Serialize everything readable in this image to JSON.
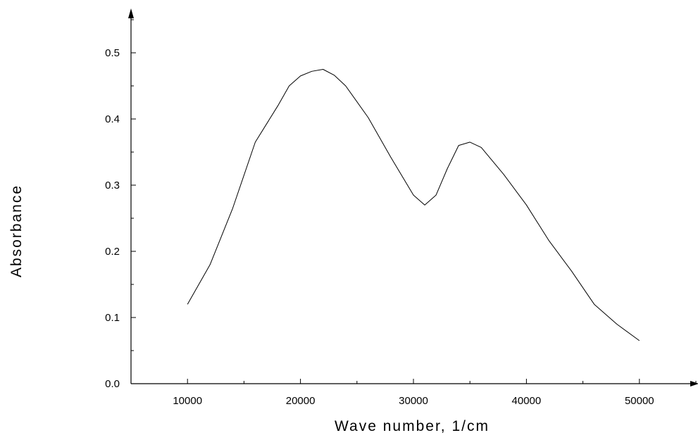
{
  "chart_data": {
    "type": "line",
    "title": "",
    "xlabel": "Wave number, 1/cm",
    "ylabel": "Absorbance",
    "xlim": [
      5000,
      55000
    ],
    "ylim": [
      0.0,
      0.55
    ],
    "x_ticks": [
      10000,
      20000,
      30000,
      40000,
      50000
    ],
    "x_tick_labels": [
      "10000",
      "20000",
      "30000",
      "40000",
      "50000"
    ],
    "y_ticks": [
      0.0,
      0.1,
      0.2,
      0.3,
      0.4,
      0.5
    ],
    "y_tick_labels": [
      "0.0",
      "0.1",
      "0.2",
      "0.3",
      "0.4",
      "0.5"
    ],
    "grid": false,
    "legend": "none",
    "line_color": "#000000",
    "series": [
      {
        "x": [
          10000,
          12000,
          14000,
          16000,
          18000,
          19000,
          20000,
          21000,
          22000,
          23000,
          24000,
          26000,
          28000,
          30000,
          31000,
          32000,
          33000,
          34000,
          35000,
          36000,
          38000,
          40000,
          42000,
          44000,
          46000,
          48000,
          50000
        ],
        "y": [
          0.12,
          0.18,
          0.265,
          0.365,
          0.42,
          0.45,
          0.465,
          0.472,
          0.475,
          0.466,
          0.45,
          0.402,
          0.342,
          0.285,
          0.27,
          0.285,
          0.325,
          0.36,
          0.365,
          0.357,
          0.316,
          0.27,
          0.216,
          0.17,
          0.12,
          0.09,
          0.065
        ]
      }
    ]
  }
}
